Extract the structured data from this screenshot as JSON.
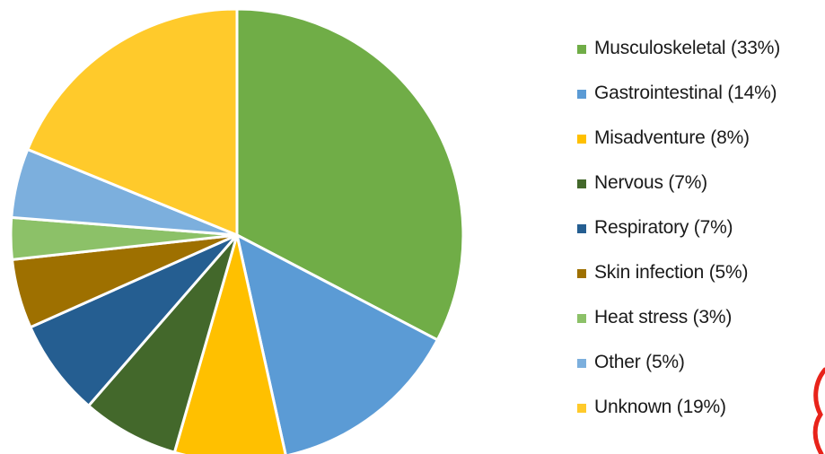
{
  "chart_data": {
    "type": "pie",
    "slices": [
      {
        "label": "Musculoskeletal (33%)",
        "value": 33,
        "color": "#70ad47"
      },
      {
        "label": "Gastrointestinal (14%)",
        "value": 14,
        "color": "#5b9bd5"
      },
      {
        "label": "Misadventure (8%)",
        "value": 8,
        "color": "#ffc000"
      },
      {
        "label": "Nervous (7%)",
        "value": 7,
        "color": "#43682b"
      },
      {
        "label": "Respiratory (7%)",
        "value": 7,
        "color": "#255e91"
      },
      {
        "label": "Skin infection (5%)",
        "value": 5,
        "color": "#9e7000"
      },
      {
        "label": "Heat stress (3%)",
        "value": 3,
        "color": "#8cc168"
      },
      {
        "label": "Other (5%)",
        "value": 5,
        "color": "#7cafdd"
      },
      {
        "label": "Unknown (19%)",
        "value": 19,
        "color": "#ffca2b"
      }
    ],
    "start_angle": "12 o'clock",
    "direction": "clockwise",
    "slice_border_color": "#ffffff",
    "legend_position": "right"
  },
  "watermark_color": "#e8231a"
}
